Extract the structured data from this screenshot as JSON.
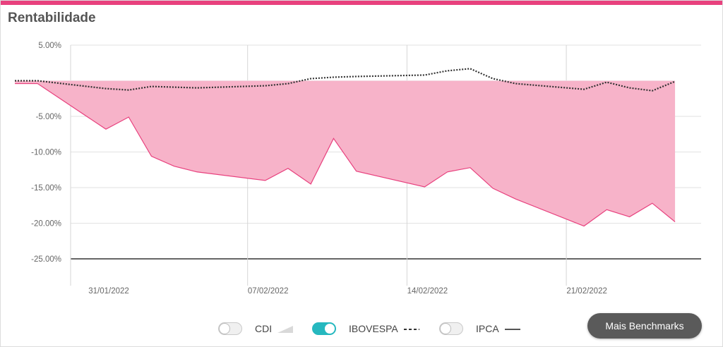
{
  "title": "Rentabilidade",
  "legend": [
    {
      "label": "CDI",
      "on": false
    },
    {
      "label": "IBOVESPA",
      "on": true
    },
    {
      "label": "IPCA",
      "on": false
    }
  ],
  "button_label": "Mais Benchmarks",
  "colors": {
    "accent": "#e8417e",
    "fill": "#f7b3c9",
    "toggle_on": "#26b8bf"
  },
  "chart_data": {
    "type": "area",
    "title": "Rentabilidade",
    "ylim": [
      -27.5,
      5
    ],
    "yticks": [
      5,
      -5,
      -10,
      -15,
      -20,
      -25
    ],
    "ytick_labels": [
      "5.00%",
      "-5.00%",
      "-10.00%",
      "-15.00%",
      "-20.00%",
      "-25.00%"
    ],
    "xtick_labels": [
      "31/01/2022",
      "07/02/2022",
      "14/02/2022",
      "21/02/2022"
    ],
    "xtick_dates": [
      "2022-01-31",
      "2022-02-07",
      "2022-02-14",
      "2022-02-21"
    ],
    "grid": true,
    "series": [
      {
        "name": "Rentabilidade",
        "style": "area",
        "dates": [
          "2022-01-27",
          "2022-01-28",
          "2022-01-31",
          "2022-02-01",
          "2022-02-02",
          "2022-02-03",
          "2022-02-04",
          "2022-02-07",
          "2022-02-08",
          "2022-02-09",
          "2022-02-10",
          "2022-02-11",
          "2022-02-14",
          "2022-02-15",
          "2022-02-16",
          "2022-02-17",
          "2022-02-18",
          "2022-02-21",
          "2022-02-22",
          "2022-02-23",
          "2022-02-24",
          "2022-02-25"
        ],
        "values": [
          -0.4,
          -0.4,
          -6.8,
          -5.1,
          -10.6,
          -12.0,
          -12.8,
          -14.0,
          -12.3,
          -14.5,
          -8.1,
          -12.7,
          -14.9,
          -12.8,
          -12.2,
          -15.1,
          -16.6,
          -20.4,
          -18.1,
          -19.1,
          -17.2,
          -19.8
        ]
      },
      {
        "name": "IBOVESPA",
        "style": "dotted",
        "dates": [
          "2022-01-27",
          "2022-01-28",
          "2022-01-31",
          "2022-02-01",
          "2022-02-02",
          "2022-02-03",
          "2022-02-04",
          "2022-02-07",
          "2022-02-08",
          "2022-02-09",
          "2022-02-10",
          "2022-02-11",
          "2022-02-14",
          "2022-02-15",
          "2022-02-16",
          "2022-02-17",
          "2022-02-18",
          "2022-02-21",
          "2022-02-22",
          "2022-02-23",
          "2022-02-24",
          "2022-02-25"
        ],
        "values": [
          0.0,
          0.0,
          -1.1,
          -1.3,
          -0.8,
          -0.9,
          -1.0,
          -0.7,
          -0.4,
          0.3,
          0.5,
          0.6,
          0.8,
          1.4,
          1.7,
          0.3,
          -0.4,
          -1.2,
          -0.2,
          -1.0,
          -1.4,
          -0.1
        ]
      }
    ]
  }
}
